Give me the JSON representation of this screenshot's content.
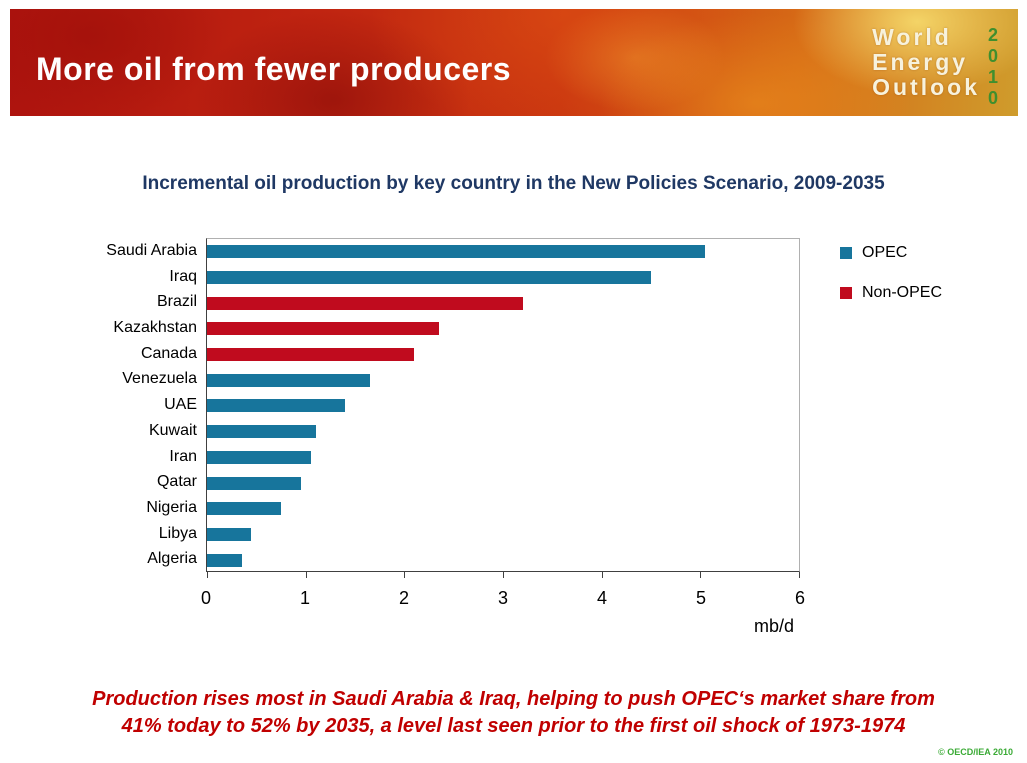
{
  "header": {
    "title": "More oil from fewer producers",
    "logo_words": [
      "World",
      "Energy",
      "Outlook"
    ],
    "logo_year": "2010"
  },
  "chart_title": "Incremental oil production by key country in the New Policies Scenario, 2009-2035",
  "chart_data": {
    "type": "bar",
    "orientation": "horizontal",
    "title": "Incremental oil production by key country in the New Policies Scenario, 2009-2035",
    "categories": [
      "Saudi Arabia",
      "Iraq",
      "Brazil",
      "Kazakhstan",
      "Canada",
      "Venezuela",
      "UAE",
      "Kuwait",
      "Iran",
      "Qatar",
      "Nigeria",
      "Libya",
      "Algeria"
    ],
    "series": [
      {
        "name": "Incremental oil production 2009-2035",
        "values": [
          5.05,
          4.5,
          3.2,
          2.35,
          2.1,
          1.65,
          1.4,
          1.1,
          1.05,
          0.95,
          0.75,
          0.45,
          0.35
        ]
      }
    ],
    "groups": [
      "OPEC",
      "OPEC",
      "Non-OPEC",
      "Non-OPEC",
      "Non-OPEC",
      "OPEC",
      "OPEC",
      "OPEC",
      "OPEC",
      "OPEC",
      "OPEC",
      "OPEC",
      "OPEC"
    ],
    "group_colors": {
      "OPEC": "#17759c",
      "Non-OPEC": "#c00b1e"
    },
    "legend": [
      "OPEC",
      "Non-OPEC"
    ],
    "legend_position": "right",
    "xlabel": "mb/d",
    "ylabel": "",
    "xlim": [
      0,
      6
    ],
    "xticks": [
      0,
      1,
      2,
      3,
      4,
      5,
      6
    ],
    "grid": false
  },
  "footer": {
    "line1": "Production rises most in Saudi Arabia & Iraq, helping to push OPEC‘s market share from",
    "line2": "41% today to 52% by 2035, a level last seen prior to the first oil shock of 1973-1974",
    "copyright": "© OECD/IEA 2010"
  }
}
